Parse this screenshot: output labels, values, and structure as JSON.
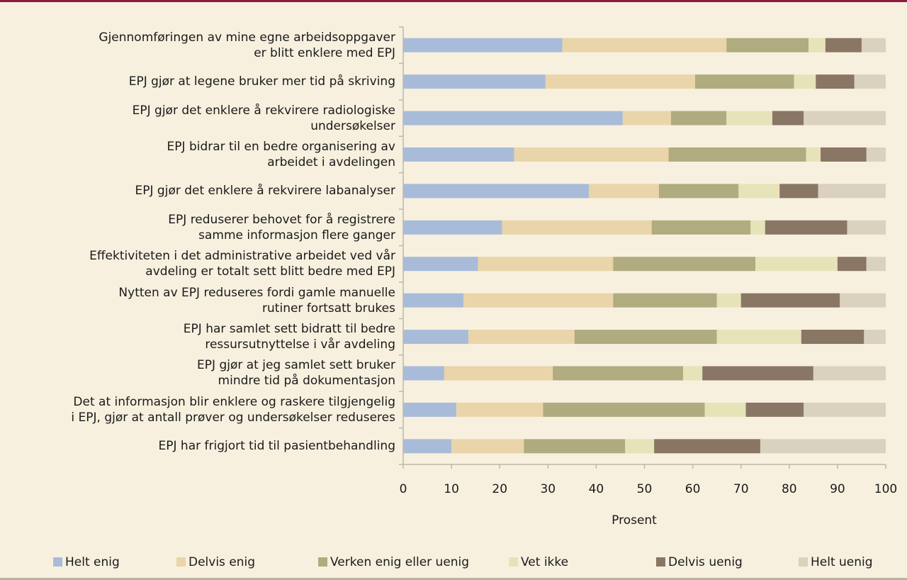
{
  "chart_data": {
    "type": "stacked-bar-horizontal",
    "categories": [
      "Gjennomføringen av mine egne arbeidsoppgaver\ner blitt enklere med EPJ",
      "EPJ gjør at legene bruker mer tid på skriving",
      "EPJ gjør det enklere å rekvirere radiologiske\nundersøkelser",
      "EPJ bidrar til en bedre organisering av\narbeidet i avdelingen",
      "EPJ gjør det enklere å rekvirere labanalyser",
      "EPJ reduserer behovet for å registrere\nsamme informasjon flere ganger",
      "Effektiviteten i det administrative arbeidet ved vår\navdeling er totalt sett blitt bedre med EPJ",
      "Nytten av EPJ reduseres fordi gamle manuelle\nrutiner fortsatt brukes",
      "EPJ har samlet sett bidratt til bedre\nressursutnyttelse i vår avdeling",
      "EPJ gjør at jeg samlet sett bruker\nmindre tid på dokumentasjon",
      "Det at informasjon blir enklere og raskere tilgjengelig\ni EPJ, gjør at antall prøver og undersøkelser reduseres",
      "EPJ har frigjort tid til pasientbehandling"
    ],
    "series": [
      {
        "name": "Helt enig",
        "color": "#a8bcd9",
        "values": [
          33,
          29.5,
          45.5,
          23,
          38.5,
          20.5,
          15.5,
          12.5,
          13.5,
          8.5,
          11,
          10
        ]
      },
      {
        "name": "Delvis enig",
        "color": "#e9d5a9",
        "values": [
          34,
          31,
          10,
          32,
          14.5,
          31,
          28,
          31,
          22,
          22.5,
          18,
          15
        ]
      },
      {
        "name": "Verken enig eller uenig",
        "color": "#b1ab80",
        "values": [
          17,
          20.5,
          11.5,
          28.5,
          16.5,
          20.5,
          29.5,
          21.5,
          29.5,
          27,
          33.5,
          21
        ]
      },
      {
        "name": "Vet ikke",
        "color": "#e6e3b9",
        "values": [
          3.5,
          4.5,
          9.5,
          3,
          8.5,
          3,
          17,
          5,
          17.5,
          4,
          8.5,
          6
        ]
      },
      {
        "name": "Delvis uenig",
        "color": "#8a7665",
        "values": [
          7.5,
          8,
          6.5,
          9.5,
          8,
          17,
          6,
          20.5,
          13,
          23,
          12,
          22
        ]
      },
      {
        "name": "Helt uenig",
        "color": "#dbd1bf",
        "values": [
          5,
          6.5,
          17,
          4,
          14,
          8,
          4,
          9.5,
          4.5,
          15,
          17,
          26
        ]
      }
    ],
    "xlabel": "Prosent",
    "xlim": [
      0,
      100
    ],
    "xticks": [
      0,
      10,
      20,
      30,
      40,
      50,
      60,
      70,
      80,
      90,
      100
    ],
    "legend": "bottom"
  }
}
